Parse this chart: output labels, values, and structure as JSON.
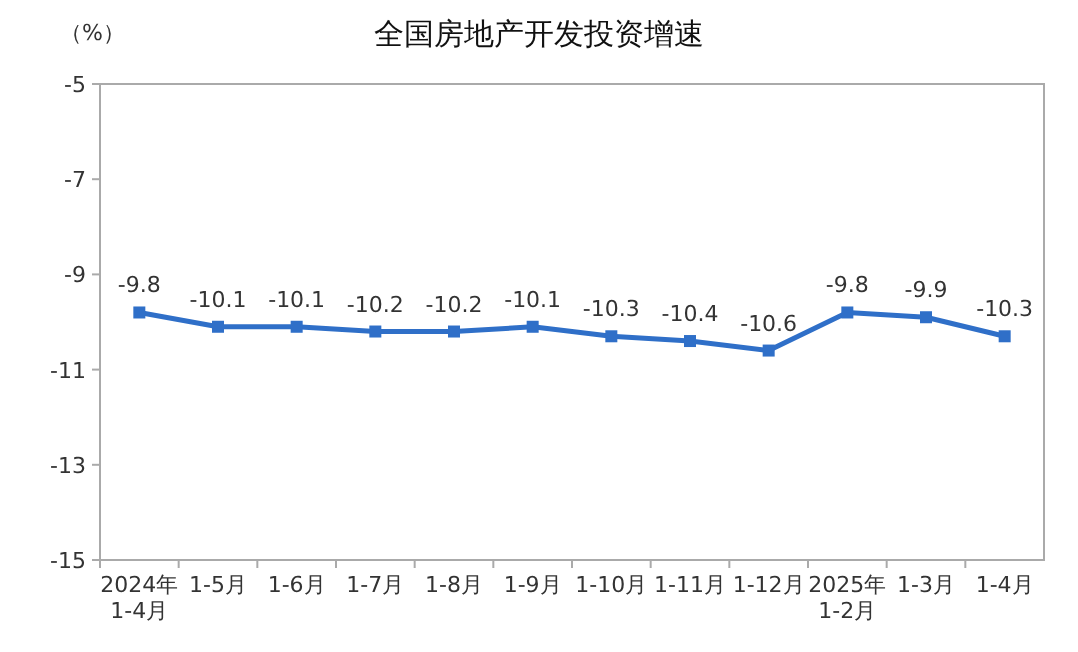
{
  "chart_data": {
    "type": "line",
    "title": "全国房地产开发投资增速",
    "ylabel": "（%）",
    "categories": [
      "2024年\n1-4月",
      "1-5月",
      "1-6月",
      "1-7月",
      "1-8月",
      "1-9月",
      "1-10月",
      "1-11月",
      "1-12月",
      "2025年\n1-2月",
      "1-3月",
      "1-4月"
    ],
    "series": [
      {
        "color": "#2f6fc8",
        "values": [
          -9.8,
          -10.1,
          -10.1,
          -10.2,
          -10.2,
          -10.1,
          -10.3,
          -10.4,
          -10.6,
          -9.8,
          -9.9,
          -10.3
        ]
      }
    ],
    "ylim": [
      -15,
      -5
    ],
    "yticks": [
      -5,
      -7,
      -9,
      -11,
      -13,
      -15
    ],
    "data_labels": true,
    "marker": "square",
    "line_style": "solid",
    "grid": false
  }
}
